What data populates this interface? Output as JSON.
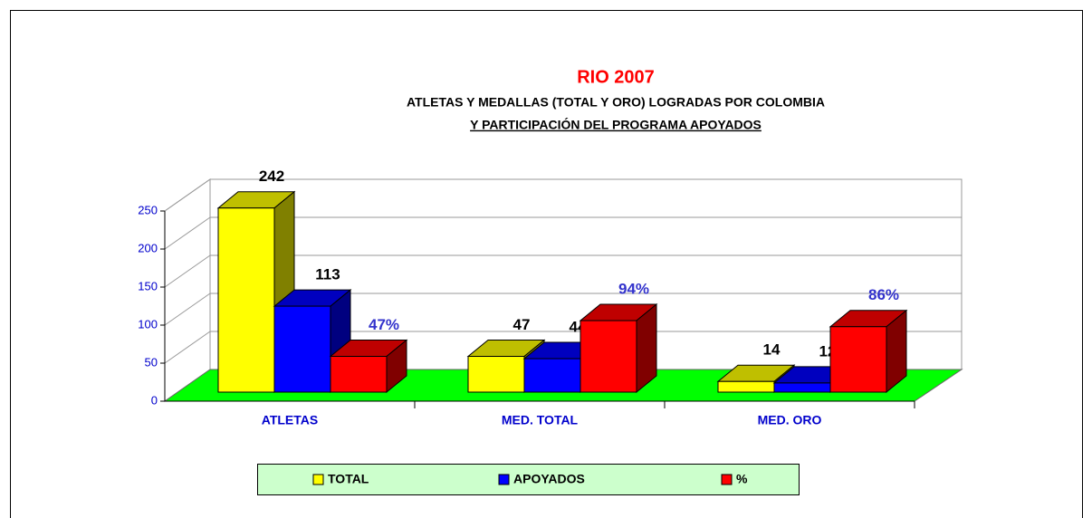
{
  "chart_data": {
    "type": "bar3d",
    "title": "RIO 2007",
    "subtitle": [
      "ATLETAS Y MEDALLAS (TOTAL Y ORO) LOGRADAS POR COLOMBIA",
      "Y PARTICIPACIÓN DEL PROGRAMA APOYADOS"
    ],
    "categories": [
      "ATLETAS",
      "MED. TOTAL",
      "MED. ORO"
    ],
    "series": [
      {
        "name": "TOTAL",
        "color": "#ffff00",
        "values": [
          242,
          47,
          14
        ]
      },
      {
        "name": "APOYADOS",
        "color": "#0000ff",
        "values": [
          113,
          44,
          12
        ]
      },
      {
        "name": "%",
        "color": "#ff0000",
        "values": [
          47,
          94,
          86
        ],
        "value_labels": [
          "47%",
          "94%",
          "86%"
        ]
      }
    ],
    "ylim": [
      0,
      250
    ],
    "yticks": [
      0,
      50,
      100,
      150,
      200,
      250
    ],
    "grid": true,
    "legend": "bottom"
  }
}
